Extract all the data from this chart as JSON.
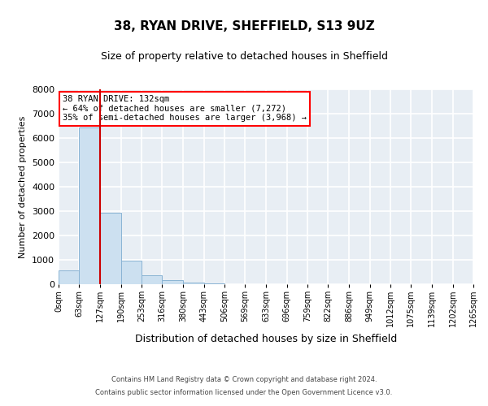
{
  "title": "38, RYAN DRIVE, SHEFFIELD, S13 9UZ",
  "subtitle": "Size of property relative to detached houses in Sheffield",
  "xlabel": "Distribution of detached houses by size in Sheffield",
  "ylabel": "Number of detached properties",
  "bar_color": "#cce0f0",
  "bar_edge_color": "#8ab4d4",
  "bin_edges": [
    0,
    63,
    127,
    190,
    253,
    316,
    380,
    443,
    506,
    569,
    633,
    696,
    759,
    822,
    886,
    949,
    1012,
    1075,
    1139,
    1202,
    1265
  ],
  "bar_heights": [
    560,
    6430,
    2920,
    980,
    360,
    170,
    80,
    50,
    0,
    0,
    0,
    0,
    0,
    0,
    0,
    0,
    0,
    0,
    0,
    0
  ],
  "tick_labels": [
    "0sqm",
    "63sqm",
    "127sqm",
    "190sqm",
    "253sqm",
    "316sqm",
    "380sqm",
    "443sqm",
    "506sqm",
    "569sqm",
    "633sqm",
    "696sqm",
    "759sqm",
    "822sqm",
    "886sqm",
    "949sqm",
    "1012sqm",
    "1075sqm",
    "1139sqm",
    "1202sqm",
    "1265sqm"
  ],
  "ylim": [
    0,
    8000
  ],
  "yticks": [
    0,
    1000,
    2000,
    3000,
    4000,
    5000,
    6000,
    7000,
    8000
  ],
  "red_line_x": 127,
  "annotation_text": "38 RYAN DRIVE: 132sqm\n← 64% of detached houses are smaller (7,272)\n35% of semi-detached houses are larger (3,968) →",
  "annotation_box_color": "white",
  "annotation_box_edge_color": "red",
  "red_line_color": "#cc0000",
  "figure_bg_color": "#ffffff",
  "plot_bg_color": "#e8eef4",
  "grid_color": "#ffffff",
  "footer_line1": "Contains HM Land Registry data © Crown copyright and database right 2024.",
  "footer_line2": "Contains public sector information licensed under the Open Government Licence v3.0."
}
